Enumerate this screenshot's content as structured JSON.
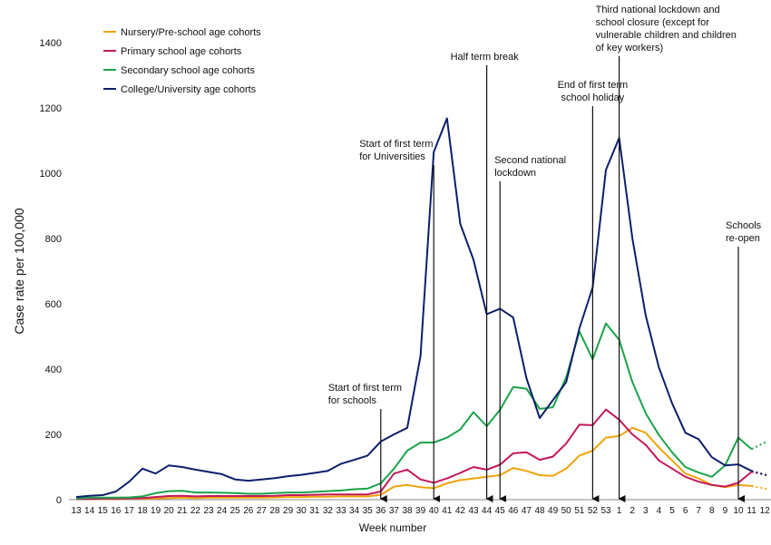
{
  "chart_data": {
    "type": "line",
    "xlabel": "Week number",
    "ylabel": "Case rate per 100,000",
    "ylim": [
      0,
      1400
    ],
    "yticks": [
      0,
      200,
      400,
      600,
      800,
      1000,
      1200,
      1400
    ],
    "grid": false,
    "legend_position": "top-left",
    "categories": [
      "13",
      "14",
      "15",
      "16",
      "17",
      "18",
      "19",
      "20",
      "21",
      "22",
      "23",
      "24",
      "25",
      "26",
      "27",
      "28",
      "29",
      "30",
      "31",
      "32",
      "33",
      "34",
      "35",
      "36",
      "37",
      "38",
      "39",
      "40",
      "41",
      "42",
      "43",
      "44",
      "45",
      "46",
      "47",
      "48",
      "49",
      "50",
      "51",
      "52",
      "53",
      "1",
      "2",
      "3",
      "4",
      "5",
      "6",
      "7",
      "8",
      "9",
      "10",
      "11",
      "12"
    ],
    "series": [
      {
        "name": "Nursery/Pre-school age cohorts",
        "color": "#F0A30A",
        "values": [
          2,
          2,
          2,
          2,
          3,
          3,
          4,
          5,
          6,
          5,
          6,
          6,
          6,
          6,
          6,
          7,
          8,
          8,
          9,
          9,
          10,
          10,
          10,
          15,
          40,
          45,
          38,
          35,
          50,
          60,
          65,
          70,
          75,
          97,
          88,
          75,
          73,
          95,
          135,
          150,
          190,
          195,
          220,
          205,
          160,
          120,
          80,
          65,
          45,
          38,
          45,
          42,
          null
        ],
        "projection": [
          42,
          33
        ]
      },
      {
        "name": "Primary school age cohorts",
        "color": "#C2185B",
        "values": [
          2,
          2,
          3,
          3,
          4,
          5,
          8,
          11,
          12,
          10,
          11,
          11,
          11,
          11,
          11,
          12,
          14,
          14,
          15,
          16,
          16,
          16,
          16,
          25,
          80,
          92,
          62,
          52,
          65,
          82,
          100,
          92,
          107,
          142,
          145,
          122,
          132,
          172,
          230,
          228,
          276,
          245,
          200,
          168,
          120,
          95,
          70,
          55,
          45,
          40,
          52,
          85,
          null
        ],
        "projection": [
          85,
          75
        ]
      },
      {
        "name": "Secondary school age cohorts",
        "color": "#1BA34A",
        "values": [
          4,
          6,
          6,
          6,
          7,
          10,
          20,
          26,
          27,
          22,
          22,
          21,
          20,
          18,
          18,
          20,
          22,
          22,
          24,
          26,
          28,
          32,
          34,
          50,
          95,
          150,
          175,
          175,
          190,
          215,
          268,
          225,
          275,
          345,
          340,
          278,
          283,
          375,
          515,
          430,
          540,
          490,
          360,
          265,
          198,
          145,
          100,
          83,
          70,
          105,
          190,
          155,
          null
        ],
        "projection": [
          155,
          178
        ]
      },
      {
        "name": "College/University age cohorts",
        "color": "#0D1F6B",
        "values": [
          8,
          12,
          14,
          25,
          55,
          95,
          80,
          105,
          100,
          92,
          85,
          78,
          62,
          58,
          62,
          66,
          72,
          76,
          82,
          88,
          110,
          122,
          135,
          178,
          200,
          220,
          440,
          1065,
          1168,
          845,
          735,
          568,
          585,
          558,
          372,
          250,
          305,
          360,
          525,
          650,
          1010,
          1108,
          800,
          565,
          405,
          295,
          205,
          185,
          130,
          105,
          108,
          88,
          null
        ],
        "projection": [
          88,
          75
        ]
      }
    ],
    "annotations": [
      {
        "label": "Start of first term for schools",
        "lines": [
          "Start of first term",
          "for schools"
        ],
        "week": "36",
        "align": "start"
      },
      {
        "label": "Start of first term for Universities",
        "lines": [
          "Start of first term",
          "for Universities"
        ],
        "week": "40",
        "align": "start"
      },
      {
        "label": "Half term break",
        "lines": [
          "Half term break"
        ],
        "week": "44",
        "align": "start"
      },
      {
        "label": "Second national lockdown",
        "lines": [
          "Second national",
          "lockdown"
        ],
        "week": "45",
        "align": "start"
      },
      {
        "label": "End of first term school holiday",
        "lines": [
          "End of first term",
          "school holiday"
        ],
        "week": "52",
        "align": "middle"
      },
      {
        "label": "Third national lockdown and school closure (except for vulnerable children and children of key workers)",
        "lines": [
          "Third national lockdown and",
          "school closure (except for",
          "vulnerable children and children",
          "of key workers)"
        ],
        "week": "1",
        "align": "start"
      },
      {
        "label": "Schools re-open",
        "lines": [
          "Schools",
          "re-open"
        ],
        "week": "10",
        "align": "start"
      }
    ]
  }
}
